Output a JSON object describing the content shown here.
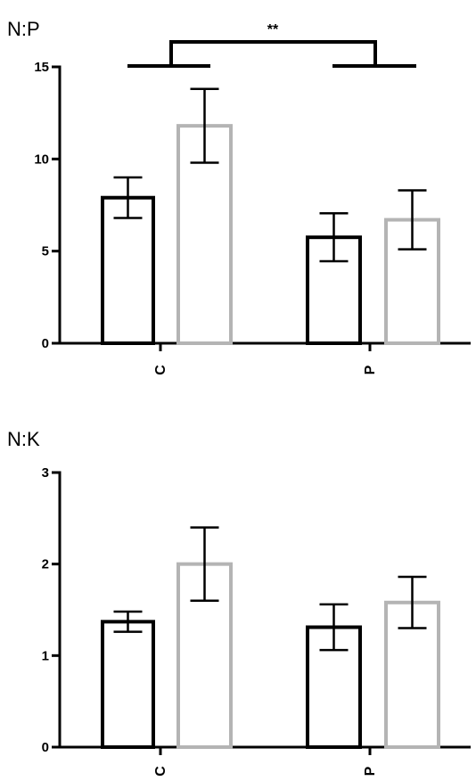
{
  "chart_data": [
    {
      "type": "bar",
      "title": "N:P",
      "categories": [
        "C",
        "P"
      ],
      "ylim": [
        0,
        15
      ],
      "yticks": [
        "0",
        "5",
        "10",
        "15"
      ],
      "series": [
        {
          "color": "#000000",
          "values": [
            7.9,
            5.75
          ],
          "errors": [
            1.1,
            1.3
          ]
        },
        {
          "color": "#b4b4b4",
          "values": [
            11.8,
            6.7
          ],
          "errors": [
            2.0,
            1.6
          ]
        }
      ],
      "significance": {
        "label": "**",
        "between": [
          "C",
          "P"
        ]
      }
    },
    {
      "type": "bar",
      "title": "N:K",
      "categories": [
        "C",
        "P"
      ],
      "ylim": [
        0,
        3
      ],
      "yticks": [
        "0",
        "1",
        "2",
        "3"
      ],
      "series": [
        {
          "color": "#000000",
          "values": [
            1.37,
            1.31
          ],
          "errors": [
            0.11,
            0.25
          ]
        },
        {
          "color": "#b4b4b4",
          "values": [
            2.0,
            1.58
          ],
          "errors": [
            0.4,
            0.28
          ]
        }
      ]
    }
  ]
}
